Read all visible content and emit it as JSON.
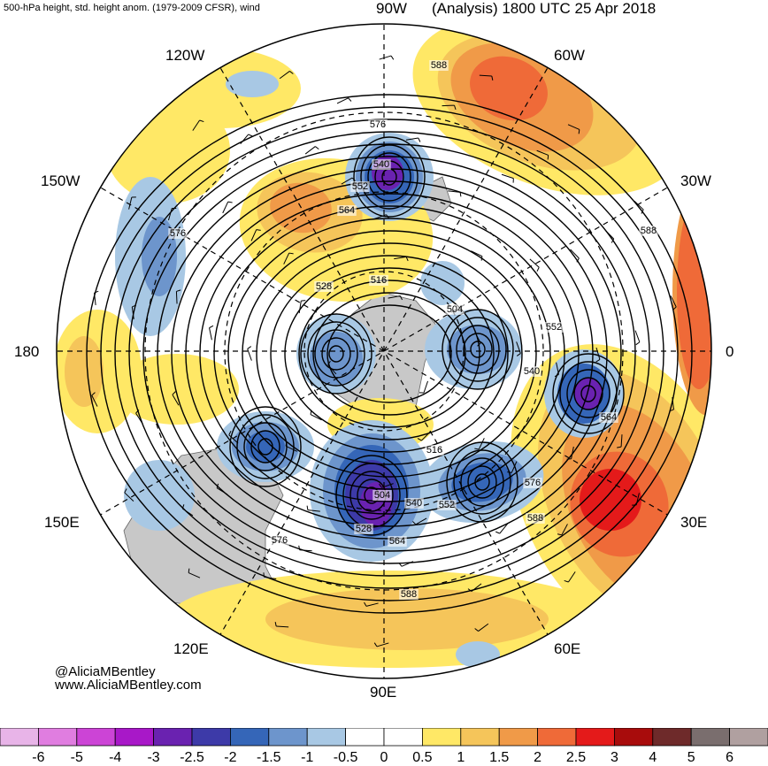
{
  "header": {
    "left_title": "500-hPa height, std. height anom. (1979-2009 CFSR), wind",
    "right_title": "(Analysis) 1800 UTC 25 Apr 2018"
  },
  "longitude_labels": {
    "lon_90w": "90W",
    "lon_60w": "60W",
    "lon_30w": "30W",
    "lon_0": "0",
    "lon_30e": "30E",
    "lon_60e": "60E",
    "lon_90e": "90E",
    "lon_120e": "120E",
    "lon_150e": "150E",
    "lon_180": "180",
    "lon_150w": "150W",
    "lon_120w": "120W"
  },
  "contour_labels": [
    "588",
    "576",
    "540",
    "552",
    "564",
    "576",
    "528",
    "516",
    "504",
    "552",
    "540",
    "564",
    "576",
    "588",
    "516",
    "504",
    "540",
    "552",
    "528",
    "564",
    "576",
    "588",
    "588"
  ],
  "credits": {
    "handle": "@AliciaMBentley",
    "website": "www.AliciaMBentley.com"
  },
  "colorbar": {
    "ticks": [
      "-6",
      "-5",
      "-4",
      "-3",
      "-2.5",
      "-2",
      "-1.5",
      "-1",
      "-0.5",
      "0",
      "0.5",
      "1",
      "1.5",
      "2",
      "2.5",
      "3",
      "4",
      "5",
      "6"
    ],
    "colors": [
      "#e8b4e8",
      "#e07de0",
      "#cc44d6",
      "#a818c8",
      "#6a22b0",
      "#3d3aa8",
      "#3566b8",
      "#6d95cc",
      "#a8c8e4",
      "#ffffff",
      "#ffffff",
      "#ffe866",
      "#f5c55a",
      "#f09a48",
      "#ef6a38",
      "#e41a1a",
      "#a80c0c",
      "#6e2a2a",
      "#7a6e6e",
      "#b0a0a0"
    ]
  },
  "map_colors": {
    "land": "#c8c8c8",
    "pos_1": "#ffe866",
    "pos_15": "#f5c55a",
    "pos_2": "#f09a48",
    "pos_25": "#ef6a38",
    "pos_3": "#e41a1a",
    "neg_1": "#a8c8e4",
    "neg_15": "#6d95cc",
    "neg_2": "#3566b8",
    "neg_25": "#3d3aa8",
    "neg_3": "#6a22b0"
  }
}
